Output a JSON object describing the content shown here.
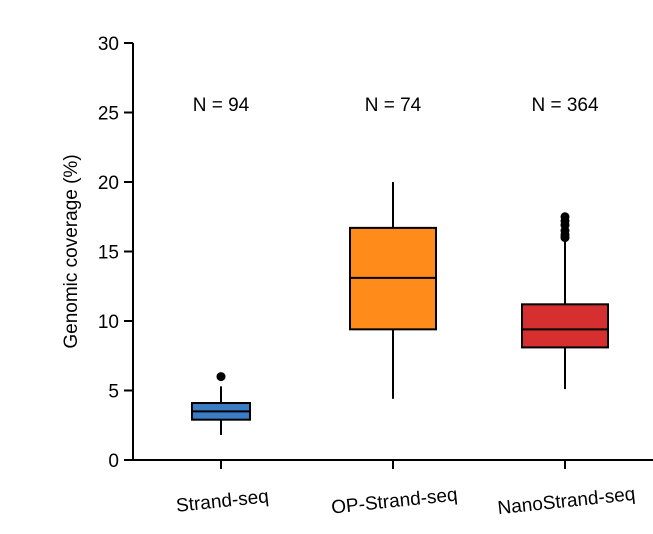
{
  "chart_data": {
    "type": "box",
    "title": "",
    "xlabel": "",
    "ylabel": "Genomic coverage (%)",
    "ylim": [
      0,
      30
    ],
    "yticks": [
      0,
      5,
      10,
      15,
      20,
      25,
      30
    ],
    "yticks_text": [
      "0",
      "5",
      "10",
      "15",
      "20",
      "25",
      "30"
    ],
    "grid": false,
    "legend": "none",
    "categories": [
      "Strand-seq",
      "OP-Strand-seq",
      "NanoStrand-seq"
    ],
    "annotations": [
      "N = 94",
      "N = 74",
      "N = 364"
    ],
    "series": [
      {
        "color": "#3b7dc4",
        "boxes": [
          {
            "category": "Strand-seq",
            "whisker_low": 1.8,
            "q1": 2.9,
            "median": 3.5,
            "q3": 4.1,
            "whisker_high": 5.3,
            "outliers": [
              6.0
            ],
            "n": 94
          },
          {
            "category": "OP-Strand-seq",
            "whisker_low": 4.4,
            "q1": 9.4,
            "median": 13.1,
            "q3": 16.7,
            "whisker_high": 20.0,
            "outliers": [],
            "n": 74
          },
          {
            "category": "NanoStrand-seq",
            "whisker_low": 5.1,
            "q1": 8.1,
            "median": 9.4,
            "q3": 11.2,
            "whisker_high": 15.8,
            "outliers": [
              16.0,
              16.2,
              16.5,
              16.9,
              17.2,
              17.5
            ],
            "n": 364
          }
        ]
      }
    ],
    "box_colors": [
      "#3b7dc4",
      "#ff8c1a",
      "#d62f2f"
    ]
  }
}
